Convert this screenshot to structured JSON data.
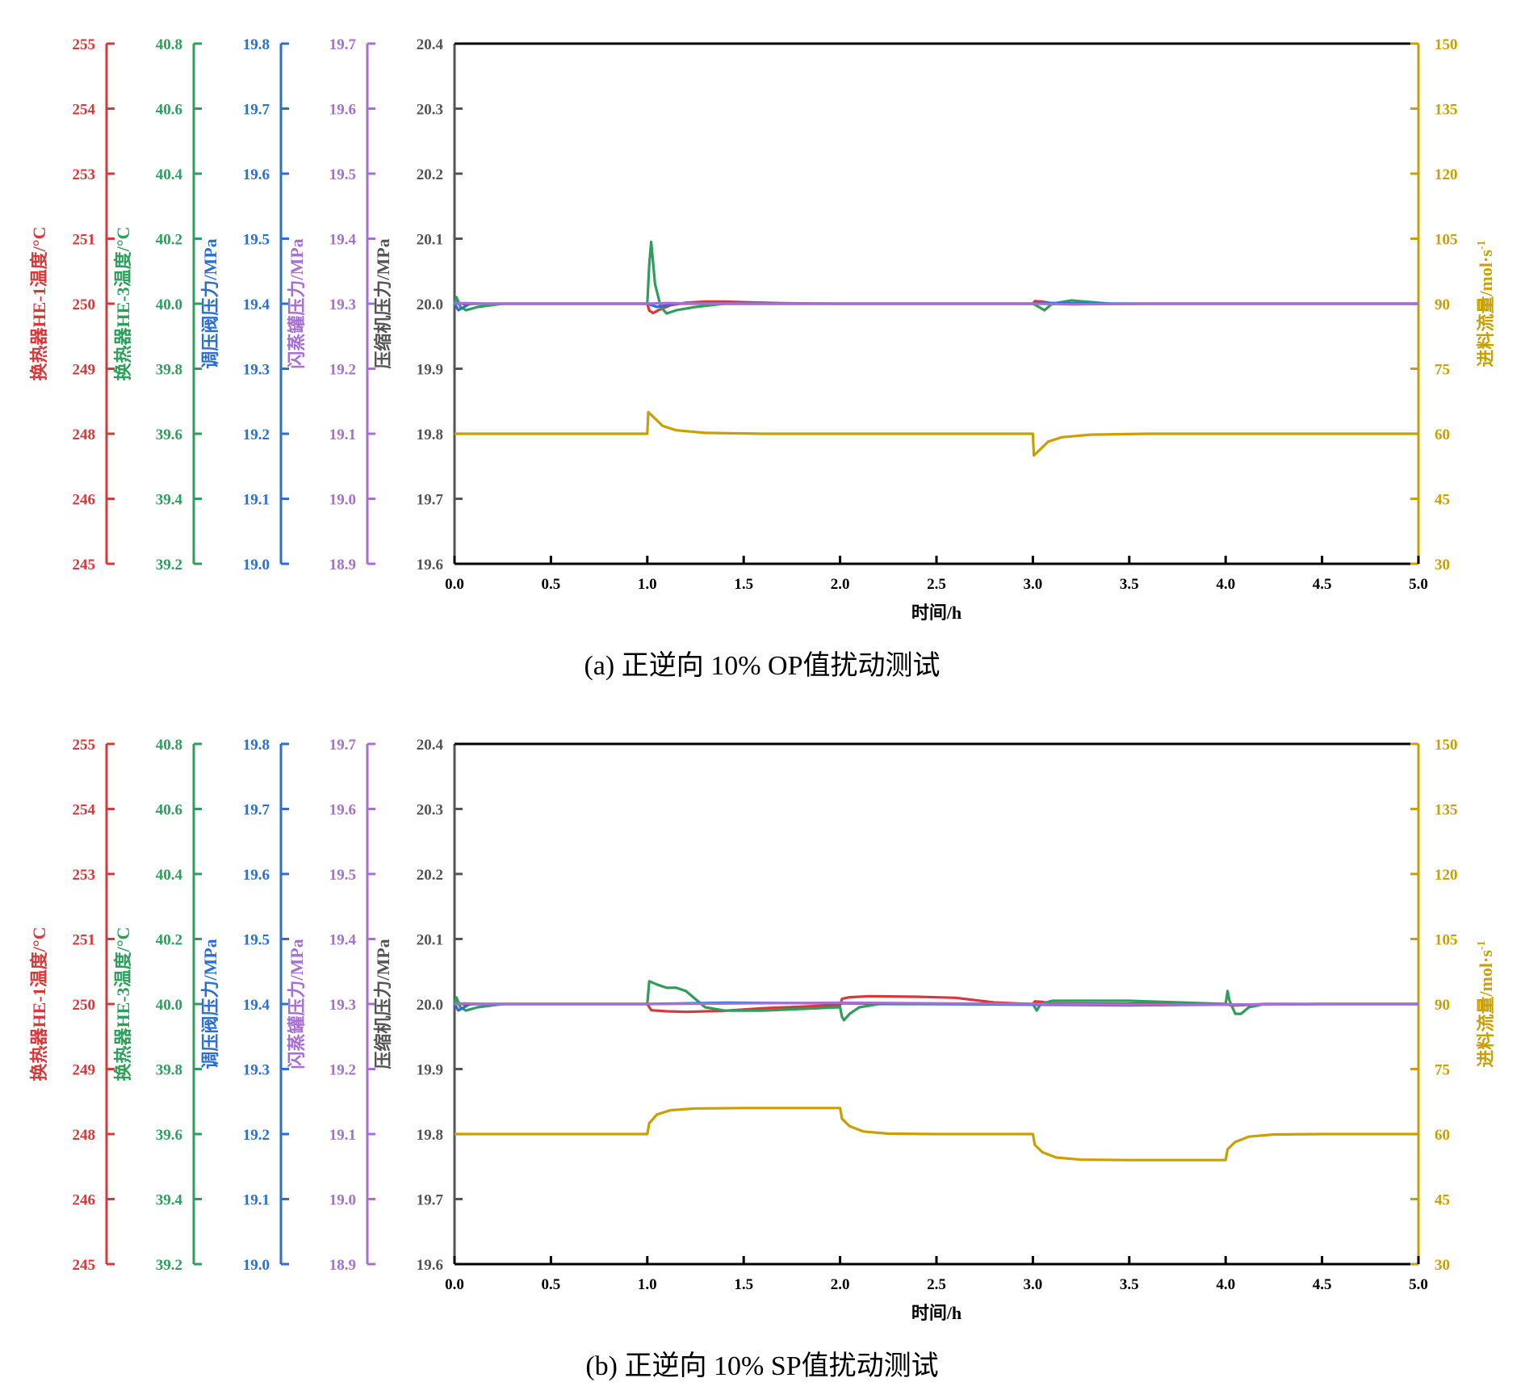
{
  "chart_data": [
    {
      "type": "line",
      "caption": "(a) 正逆向 10% OP值扰动测试",
      "xlabel": "时间/h",
      "xlim": [
        0,
        5
      ],
      "x_ticks": [
        "0.0",
        "0.5",
        "1.0",
        "1.5",
        "2.0",
        "2.5",
        "3.0",
        "3.5",
        "4.0",
        "4.5",
        "5.0"
      ],
      "axes": [
        {
          "key": "he1",
          "label": "换热器HE-1温度/°C",
          "color": "#d9383a",
          "ticks": [
            "245",
            "246",
            "248",
            "249",
            "250",
            "251",
            "253",
            "254",
            "255"
          ]
        },
        {
          "key": "he3",
          "label": "换热器HE-3温度/°C",
          "color": "#2e9e5c",
          "ticks": [
            "39.2",
            "39.4",
            "39.6",
            "39.8",
            "40.0",
            "40.2",
            "40.4",
            "40.6",
            "40.8"
          ]
        },
        {
          "key": "valve",
          "label": "调压阀压力/MPa",
          "color": "#2a6fd4",
          "ticks": [
            "19.0",
            "19.1",
            "19.2",
            "19.3",
            "19.4",
            "19.5",
            "19.6",
            "19.7",
            "19.8"
          ]
        },
        {
          "key": "flash",
          "label": "闪蒸罐压力/MPa",
          "color": "#a66fd1",
          "ticks": [
            "18.9",
            "19.0",
            "19.1",
            "19.2",
            "19.3",
            "19.4",
            "19.5",
            "19.6",
            "19.7"
          ]
        },
        {
          "key": "comp",
          "label": "压缩机压力/MPa",
          "color": "#555555",
          "ticks": [
            "19.6",
            "19.7",
            "19.8",
            "19.9",
            "20.0",
            "20.1",
            "20.2",
            "20.3",
            "20.4"
          ]
        },
        {
          "key": "feed",
          "label": "进料流量/mol·s",
          "label_sup": "-1",
          "color": "#c9a000",
          "ticks": [
            "30",
            "45",
            "60",
            "75",
            "90",
            "105",
            "120",
            "135",
            "150"
          ]
        }
      ],
      "series": [
        {
          "axis": "he1",
          "color": "#d9383a",
          "points": [
            [
              0,
              250
            ],
            [
              0.02,
              250.02
            ],
            [
              0.05,
              249.99
            ],
            [
              0.1,
              250
            ],
            [
              1.0,
              250
            ],
            [
              1.01,
              249.87
            ],
            [
              1.03,
              249.82
            ],
            [
              1.06,
              249.88
            ],
            [
              1.12,
              249.97
            ],
            [
              1.2,
              250.02
            ],
            [
              1.3,
              250.04
            ],
            [
              1.4,
              250.04
            ],
            [
              1.5,
              250.03
            ],
            [
              1.7,
              250.01
            ],
            [
              2.0,
              250
            ],
            [
              3.0,
              250
            ],
            [
              3.01,
              250.05
            ],
            [
              3.05,
              250.04
            ],
            [
              3.1,
              250.01
            ],
            [
              3.2,
              249.99
            ],
            [
              3.4,
              250
            ],
            [
              5,
              250
            ]
          ]
        },
        {
          "axis": "he3",
          "color": "#2e9e5c",
          "points": [
            [
              0,
              40.0
            ],
            [
              0.01,
              40.02
            ],
            [
              0.03,
              39.99
            ],
            [
              0.06,
              39.98
            ],
            [
              0.12,
              39.99
            ],
            [
              0.25,
              40.0
            ],
            [
              1.0,
              40.0
            ],
            [
              1.01,
              40.12
            ],
            [
              1.02,
              40.19
            ],
            [
              1.04,
              40.06
            ],
            [
              1.07,
              39.99
            ],
            [
              1.1,
              39.97
            ],
            [
              1.15,
              39.98
            ],
            [
              1.25,
              39.99
            ],
            [
              1.4,
              40.0
            ],
            [
              3.0,
              40.0
            ],
            [
              3.03,
              39.99
            ],
            [
              3.06,
              39.98
            ],
            [
              3.1,
              40.0
            ],
            [
              3.2,
              40.01
            ],
            [
              3.4,
              40.0
            ],
            [
              5,
              40.0
            ]
          ]
        },
        {
          "axis": "valve",
          "color": "#2a6fd4",
          "points": [
            [
              0,
              19.4
            ],
            [
              0.02,
              19.39
            ],
            [
              0.08,
              19.4
            ],
            [
              1.0,
              19.4
            ],
            [
              1.05,
              19.395
            ],
            [
              1.15,
              19.4
            ],
            [
              3.0,
              19.4
            ],
            [
              3.1,
              19.401
            ],
            [
              3.3,
              19.4
            ],
            [
              5,
              19.4
            ]
          ]
        },
        {
          "axis": "flash",
          "color": "#a66fd1",
          "points": [
            [
              0,
              19.3
            ],
            [
              0.05,
              19.301
            ],
            [
              0.15,
              19.3
            ],
            [
              1.0,
              19.3
            ],
            [
              1.1,
              19.301
            ],
            [
              1.3,
              19.3
            ],
            [
              3.0,
              19.3
            ],
            [
              3.2,
              19.299
            ],
            [
              3.6,
              19.3
            ],
            [
              5,
              19.3
            ]
          ]
        },
        {
          "axis": "feed",
          "color": "#c9a000",
          "points": [
            [
              0,
              60
            ],
            [
              1.0,
              60
            ],
            [
              1.005,
              65
            ],
            [
              1.04,
              63.5
            ],
            [
              1.08,
              61.8
            ],
            [
              1.15,
              60.8
            ],
            [
              1.3,
              60.2
            ],
            [
              1.6,
              60
            ],
            [
              3.0,
              60
            ],
            [
              3.005,
              55
            ],
            [
              3.04,
              56.5
            ],
            [
              3.08,
              58.2
            ],
            [
              3.15,
              59.2
            ],
            [
              3.3,
              59.8
            ],
            [
              3.6,
              60
            ],
            [
              5,
              60
            ]
          ]
        }
      ]
    },
    {
      "type": "line",
      "caption": "(b) 正逆向 10% SP值扰动测试",
      "xlabel": "时间/h",
      "xlim": [
        0,
        5
      ],
      "x_ticks": [
        "0.0",
        "0.5",
        "1.0",
        "1.5",
        "2.0",
        "2.5",
        "3.0",
        "3.5",
        "4.0",
        "4.5",
        "5.0"
      ],
      "axes": [
        {
          "key": "he1",
          "label": "换热器HE-1温度/°C",
          "color": "#d9383a",
          "ticks": [
            "245",
            "246",
            "248",
            "249",
            "250",
            "251",
            "253",
            "254",
            "255"
          ]
        },
        {
          "key": "he3",
          "label": "换热器HE-3温度/°C",
          "color": "#2e9e5c",
          "ticks": [
            "39.2",
            "39.4",
            "39.6",
            "39.8",
            "40.0",
            "40.2",
            "40.4",
            "40.6",
            "40.8"
          ]
        },
        {
          "key": "valve",
          "label": "调压阀压力/MPa",
          "color": "#2a6fd4",
          "ticks": [
            "19.0",
            "19.1",
            "19.2",
            "19.3",
            "19.4",
            "19.5",
            "19.6",
            "19.7",
            "19.8"
          ]
        },
        {
          "key": "flash",
          "label": "闪蒸罐压力/MPa",
          "color": "#a66fd1",
          "ticks": [
            "18.9",
            "19.0",
            "19.1",
            "19.2",
            "19.3",
            "19.4",
            "19.5",
            "19.6",
            "19.7"
          ]
        },
        {
          "key": "comp",
          "label": "压缩机压力/MPa",
          "color": "#555555",
          "ticks": [
            "19.6",
            "19.7",
            "19.8",
            "19.9",
            "20.0",
            "20.1",
            "20.2",
            "20.3",
            "20.4"
          ]
        },
        {
          "key": "feed",
          "label": "进料流量/mol·s",
          "label_sup": "-1",
          "color": "#c9a000",
          "ticks": [
            "30",
            "45",
            "60",
            "75",
            "90",
            "105",
            "120",
            "135",
            "150"
          ]
        }
      ],
      "series": [
        {
          "axis": "he1",
          "color": "#d9383a",
          "points": [
            [
              0,
              250
            ],
            [
              0.02,
              250.02
            ],
            [
              0.05,
              249.99
            ],
            [
              0.1,
              250
            ],
            [
              1.0,
              250
            ],
            [
              1.02,
              249.88
            ],
            [
              1.1,
              249.86
            ],
            [
              1.2,
              249.85
            ],
            [
              1.4,
              249.87
            ],
            [
              1.6,
              249.92
            ],
            [
              2.0,
              249.98
            ],
            [
              2.01,
              250.1
            ],
            [
              2.05,
              250.13
            ],
            [
              2.15,
              250.15
            ],
            [
              2.4,
              250.14
            ],
            [
              2.6,
              250.12
            ],
            [
              2.8,
              250.03
            ],
            [
              3.0,
              250
            ],
            [
              3.01,
              250.05
            ],
            [
              3.05,
              250.04
            ],
            [
              3.1,
              250.01
            ],
            [
              4.0,
              250.0
            ],
            [
              4.03,
              249.97
            ],
            [
              4.1,
              249.98
            ],
            [
              4.2,
              250
            ],
            [
              5,
              250
            ]
          ]
        },
        {
          "axis": "he3",
          "color": "#2e9e5c",
          "points": [
            [
              0,
              40.0
            ],
            [
              0.01,
              40.02
            ],
            [
              0.03,
              39.99
            ],
            [
              0.06,
              39.98
            ],
            [
              0.12,
              39.99
            ],
            [
              0.25,
              40.0
            ],
            [
              1.0,
              40.0
            ],
            [
              1.01,
              40.07
            ],
            [
              1.05,
              40.06
            ],
            [
              1.1,
              40.05
            ],
            [
              1.15,
              40.05
            ],
            [
              1.2,
              40.04
            ],
            [
              1.3,
              39.99
            ],
            [
              1.4,
              39.98
            ],
            [
              1.6,
              39.98
            ],
            [
              2.0,
              39.99
            ],
            [
              2.01,
              39.96
            ],
            [
              2.02,
              39.95
            ],
            [
              2.05,
              39.97
            ],
            [
              2.1,
              39.99
            ],
            [
              2.2,
              40.0
            ],
            [
              3.0,
              40.0
            ],
            [
              3.02,
              39.98
            ],
            [
              3.04,
              40.0
            ],
            [
              3.1,
              40.01
            ],
            [
              3.5,
              40.01
            ],
            [
              4.0,
              40.0
            ],
            [
              4.01,
              40.04
            ],
            [
              4.02,
              40.01
            ],
            [
              4.05,
              39.97
            ],
            [
              4.08,
              39.97
            ],
            [
              4.12,
              39.99
            ],
            [
              4.2,
              40.0
            ],
            [
              5,
              40.0
            ]
          ]
        },
        {
          "axis": "valve",
          "color": "#2a6fd4",
          "points": [
            [
              0,
              19.4
            ],
            [
              0.02,
              19.39
            ],
            [
              0.08,
              19.4
            ],
            [
              1.0,
              19.4
            ],
            [
              1.4,
              19.402
            ],
            [
              2.0,
              19.401
            ],
            [
              2.5,
              19.4
            ],
            [
              3.0,
              19.399
            ],
            [
              3.5,
              19.398
            ],
            [
              4.0,
              19.399
            ],
            [
              4.5,
              19.4
            ],
            [
              5,
              19.4
            ]
          ]
        },
        {
          "axis": "flash",
          "color": "#a66fd1",
          "points": [
            [
              0,
              19.3
            ],
            [
              0.05,
              19.301
            ],
            [
              0.15,
              19.3
            ],
            [
              1.0,
              19.3
            ],
            [
              1.5,
              19.301
            ],
            [
              2.0,
              19.302
            ],
            [
              2.5,
              19.301
            ],
            [
              3.0,
              19.3
            ],
            [
              3.5,
              19.299
            ],
            [
              4.0,
              19.299
            ],
            [
              4.5,
              19.3
            ],
            [
              5,
              19.3
            ]
          ]
        },
        {
          "axis": "feed",
          "color": "#c9a000",
          "points": [
            [
              0,
              60
            ],
            [
              1.0,
              60
            ],
            [
              1.01,
              62.5
            ],
            [
              1.05,
              64.5
            ],
            [
              1.12,
              65.5
            ],
            [
              1.25,
              65.9
            ],
            [
              1.5,
              66
            ],
            [
              2.0,
              66
            ],
            [
              2.01,
              63.5
            ],
            [
              2.05,
              61.8
            ],
            [
              2.12,
              60.6
            ],
            [
              2.25,
              60.1
            ],
            [
              2.5,
              60
            ],
            [
              3.0,
              60
            ],
            [
              3.01,
              57.5
            ],
            [
              3.05,
              55.8
            ],
            [
              3.12,
              54.6
            ],
            [
              3.25,
              54.1
            ],
            [
              3.5,
              54
            ],
            [
              4.0,
              54
            ],
            [
              4.01,
              56.5
            ],
            [
              4.05,
              58.2
            ],
            [
              4.12,
              59.4
            ],
            [
              4.25,
              59.9
            ],
            [
              4.5,
              60
            ],
            [
              5,
              60
            ]
          ]
        }
      ]
    }
  ]
}
